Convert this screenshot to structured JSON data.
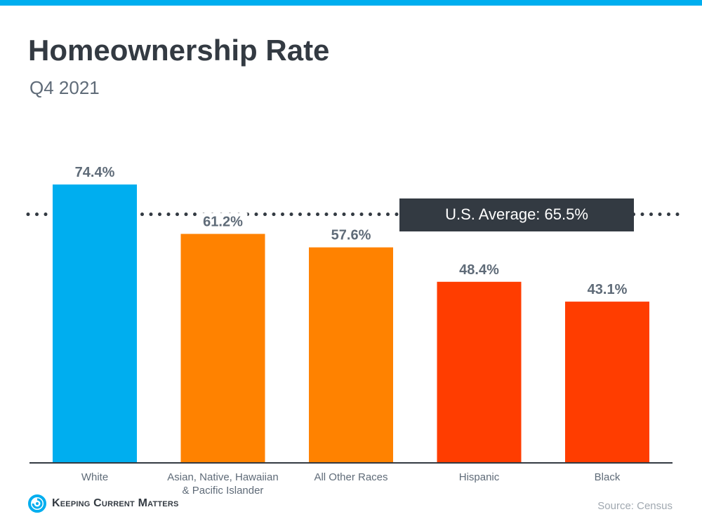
{
  "header": {
    "title": "Homeownership Rate",
    "subtitle": "Q4 2021"
  },
  "chart_data": {
    "type": "bar",
    "title": "Homeownership Rate",
    "subtitle": "Q4 2021",
    "categories": [
      "White",
      "Asian, Native, Hawaiian & Pacific Islander",
      "All Other Races",
      "Hispanic",
      "Black"
    ],
    "category_lines": [
      [
        "White"
      ],
      [
        "Asian, Native, Hawaiian",
        "& Pacific Islander"
      ],
      [
        "All Other Races"
      ],
      [
        "Hispanic"
      ],
      [
        "Black"
      ]
    ],
    "values": [
      74.4,
      61.2,
      57.6,
      48.4,
      43.1
    ],
    "data_labels": [
      "74.4%",
      "61.2%",
      "57.6%",
      "48.4%",
      "43.1%"
    ],
    "colors": [
      "#00AEEF",
      "#FF8200",
      "#FF8200",
      "#FF3D00",
      "#FF3D00"
    ],
    "reference_line": {
      "value": 65.5,
      "label": "U.S. Average: 65.5%",
      "style": "dotted"
    },
    "ylim": [
      0,
      80
    ],
    "grid": false,
    "xlabel": "",
    "ylabel": ""
  },
  "footer": {
    "brand": "Keeping Current Matters",
    "source": "Source: Census"
  },
  "colors": {
    "accent": "#00AEEF",
    "text_dark": "#333a42",
    "text_muted": "#5f6b78"
  }
}
